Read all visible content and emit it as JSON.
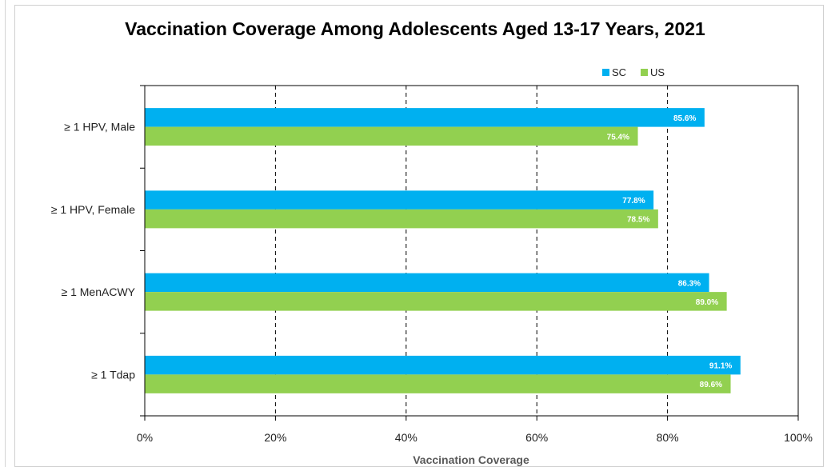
{
  "chart_data": {
    "type": "bar",
    "orientation": "horizontal",
    "title": "Vaccination Coverage Among Adolescents Aged 13-17 Years, 2021",
    "xlabel": "Vaccination Coverage",
    "ylabel": "",
    "xlim": [
      0,
      100
    ],
    "x_ticks": [
      "0%",
      "20%",
      "40%",
      "60%",
      "80%",
      "100%"
    ],
    "categories": [
      "≥ 1 HPV, Male",
      "≥ 1 HPV, Female",
      "≥ 1 MenACWY",
      "≥ 1 Tdap"
    ],
    "series": [
      {
        "name": "SC",
        "color": "#00b0f0",
        "values": [
          85.6,
          77.8,
          86.3,
          91.1
        ],
        "labels": [
          "85.6%",
          "77.8%",
          "86.3%",
          "91.1%"
        ]
      },
      {
        "name": "US",
        "color": "#92d050",
        "values": [
          75.4,
          78.5,
          89.0,
          89.6
        ],
        "labels": [
          "75.4%",
          "78.5%",
          "89.0%",
          "89.6%"
        ]
      }
    ],
    "legend_position": "top-right",
    "grid": "vertical dashed"
  }
}
